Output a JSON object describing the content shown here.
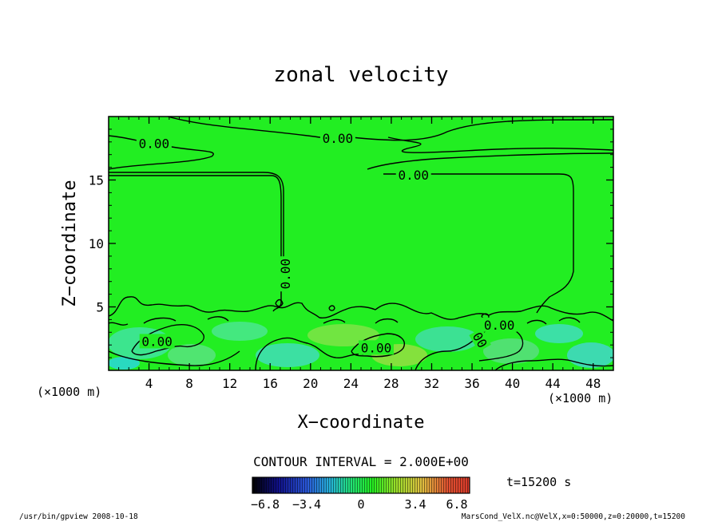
{
  "chart_data": {
    "type": "heatmap",
    "title": "zonal velocity",
    "xlabel": "X−coordinate",
    "ylabel": "Z−coordinate",
    "x_unit_left": "(×1000 m)",
    "x_unit_right": "(×1000 m)",
    "xlim": [
      0,
      50
    ],
    "ylim": [
      0,
      20
    ],
    "x_ticks": [
      4,
      8,
      12,
      16,
      20,
      24,
      28,
      32,
      36,
      40,
      44,
      48
    ],
    "x_tick_labels": [
      "4",
      "8",
      "12",
      "16",
      "20",
      "24",
      "28",
      "32",
      "36",
      "40",
      "44",
      "48"
    ],
    "y_ticks": [
      5,
      10,
      15
    ],
    "y_tick_labels": [
      "5",
      "10",
      "15"
    ],
    "contour_labels": [
      {
        "text": "0.00",
        "x": 4.5,
        "y": 17.9
      },
      {
        "text": "0.00",
        "x": 22.7,
        "y": 18.3
      },
      {
        "text": "0.00",
        "x": 30.2,
        "y": 15.4
      },
      {
        "text": "0.00",
        "x": 17.5,
        "y": 7.6,
        "rotate": -90
      },
      {
        "text": "0.00",
        "x": 4.8,
        "y": 2.3
      },
      {
        "text": "0.00",
        "x": 26.5,
        "y": 1.8
      },
      {
        "text": "0.00",
        "x": 38.7,
        "y": 3.6
      },
      {
        "text": "00",
        "x": 36.8,
        "y": 2.4,
        "rotate": 60
      }
    ],
    "contour_interval_label": "CONTOUR INTERVAL = 2.000E+00",
    "colorbar": {
      "range": [
        -6.8,
        6.8
      ],
      "tick_values": [
        -6.8,
        -3.4,
        0,
        3.4,
        6.8
      ],
      "tick_labels": [
        "−6.8",
        "−3.4",
        "0",
        "3.4",
        "6.8"
      ]
    },
    "field_color_background": "#22ee22",
    "time_label": "t=15200 s"
  },
  "footer": {
    "left": "/usr/bin/gpview  2008-10-18",
    "right": "MarsCond_VelX.nc@VelX,x=0:50000,z=0:20000,t=15200"
  }
}
